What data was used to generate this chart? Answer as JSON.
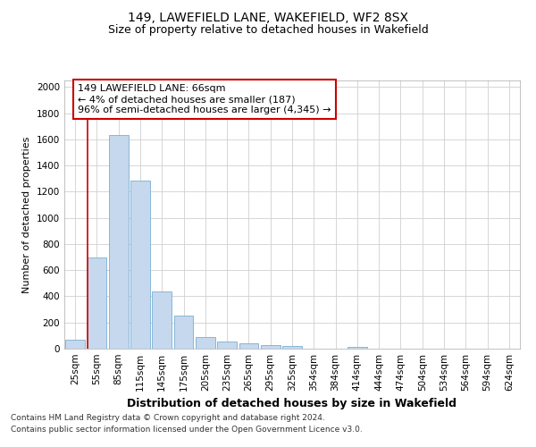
{
  "title1": "149, LAWEFIELD LANE, WAKEFIELD, WF2 8SX",
  "title2": "Size of property relative to detached houses in Wakefield",
  "xlabel": "Distribution of detached houses by size in Wakefield",
  "ylabel": "Number of detached properties",
  "footer1": "Contains HM Land Registry data © Crown copyright and database right 2024.",
  "footer2": "Contains public sector information licensed under the Open Government Licence v3.0.",
  "categories": [
    "25sqm",
    "55sqm",
    "85sqm",
    "115sqm",
    "145sqm",
    "175sqm",
    "205sqm",
    "235sqm",
    "265sqm",
    "295sqm",
    "325sqm",
    "354sqm",
    "384sqm",
    "414sqm",
    "444sqm",
    "474sqm",
    "504sqm",
    "534sqm",
    "564sqm",
    "594sqm",
    "624sqm"
  ],
  "values": [
    65,
    695,
    1635,
    1285,
    440,
    255,
    88,
    52,
    38,
    28,
    18,
    0,
    0,
    15,
    0,
    0,
    0,
    0,
    0,
    0,
    0
  ],
  "bar_color": "#c5d8ed",
  "bar_edge_color": "#7aafd4",
  "vline_color": "#cc0000",
  "annotation_text": "149 LAWEFIELD LANE: 66sqm\n← 4% of detached houses are smaller (187)\n96% of semi-detached houses are larger (4,345) →",
  "annotation_box_color": "#cc0000",
  "ylim": [
    0,
    2050
  ],
  "yticks": [
    0,
    200,
    400,
    600,
    800,
    1000,
    1200,
    1400,
    1600,
    1800,
    2000
  ],
  "grid_color": "#d0d0d0",
  "bg_color": "#ffffff",
  "title1_fontsize": 10,
  "title2_fontsize": 9,
  "xlabel_fontsize": 9,
  "ylabel_fontsize": 8,
  "tick_fontsize": 7.5,
  "annotation_fontsize": 8,
  "footer_fontsize": 6.5
}
